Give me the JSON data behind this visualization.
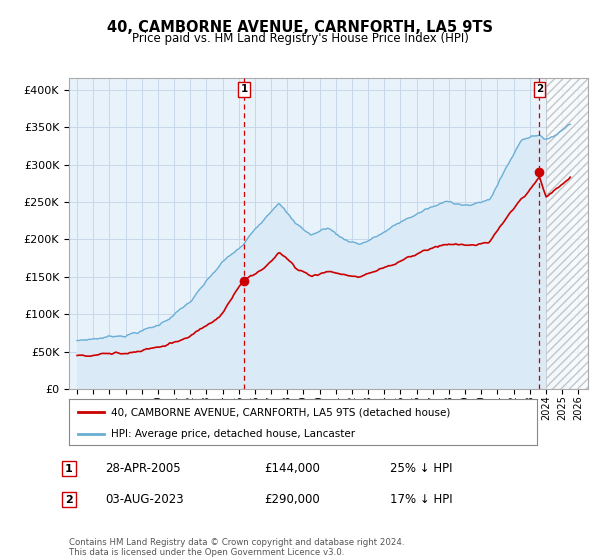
{
  "title": "40, CAMBORNE AVENUE, CARNFORTH, LA5 9TS",
  "subtitle": "Price paid vs. HM Land Registry's House Price Index (HPI)",
  "ylabel_ticks": [
    "£0",
    "£50K",
    "£100K",
    "£150K",
    "£200K",
    "£250K",
    "£300K",
    "£350K",
    "£400K"
  ],
  "ytick_vals": [
    0,
    50000,
    100000,
    150000,
    200000,
    250000,
    300000,
    350000,
    400000
  ],
  "ylim": [
    0,
    415000
  ],
  "xlim_start": 1994.5,
  "xlim_end": 2026.6,
  "sale1_date": 2005.32,
  "sale1_price": 144000,
  "sale1_label": "1",
  "sale2_date": 2023.6,
  "sale2_price": 290000,
  "sale2_label": "2",
  "hatch_start": 2024.0,
  "legend_line1": "40, CAMBORNE AVENUE, CARNFORTH, LA5 9TS (detached house)",
  "legend_line2": "HPI: Average price, detached house, Lancaster",
  "annot1_date": "28-APR-2005",
  "annot1_price": "£144,000",
  "annot1_extra": "25% ↓ HPI",
  "annot2_date": "03-AUG-2023",
  "annot2_price": "£290,000",
  "annot2_extra": "17% ↓ HPI",
  "footer": "Contains HM Land Registry data © Crown copyright and database right 2024.\nThis data is licensed under the Open Government Licence v3.0.",
  "red_color": "#cc0000",
  "blue_color": "#6aaed6",
  "blue_fill": "#daeaf6",
  "grid_color": "#c8d8eb",
  "bg_color": "#e8f2fa"
}
